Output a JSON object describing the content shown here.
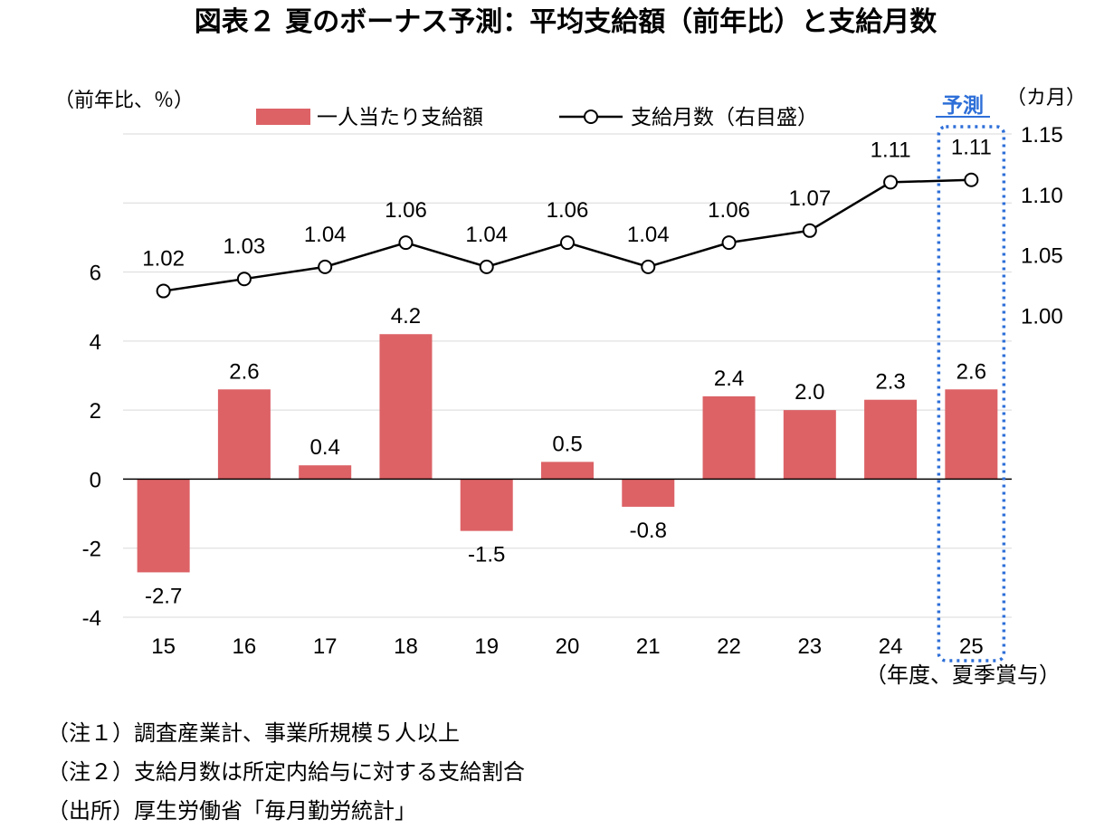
{
  "chart_data": {
    "type": "bar",
    "title": "図表２ 夏のボーナス予測：平均支給額（前年比）と支給月数",
    "y_left_label": "（前年比、％）",
    "y_right_label": "（カ月）",
    "x_label": "（年度、夏季賞与）",
    "categories": [
      "15",
      "16",
      "17",
      "18",
      "19",
      "20",
      "21",
      "22",
      "23",
      "24",
      "25"
    ],
    "y_left_ticks": [
      "-4",
      "-2",
      "0",
      "2",
      "4",
      "6"
    ],
    "y_right_ticks": [
      "1.00",
      "1.05",
      "1.10",
      "1.15"
    ],
    "ylim_left": [
      -4,
      10
    ],
    "ylim_right": [
      0.75,
      1.15
    ],
    "legend_placement": "top",
    "forecast_label": "予測",
    "forecast_category": "25",
    "series": [
      {
        "name": "一人当たり支給額",
        "type": "bar",
        "axis": "left",
        "color": "#dc6266",
        "values": [
          -2.7,
          2.6,
          0.4,
          4.2,
          -1.5,
          0.5,
          -0.8,
          2.4,
          2.0,
          2.3,
          2.6
        ],
        "labels": [
          "-2.7",
          "2.6",
          "0.4",
          "4.2",
          "-1.5",
          "0.5",
          "-0.8",
          "2.4",
          "2.0",
          "2.3",
          "2.6"
        ]
      },
      {
        "name": "支給月数（右目盛）",
        "type": "line",
        "axis": "right",
        "color": "#000000",
        "values": [
          1.02,
          1.03,
          1.04,
          1.06,
          1.04,
          1.06,
          1.04,
          1.06,
          1.07,
          1.11,
          1.112
        ],
        "labels": [
          "1.02",
          "1.03",
          "1.04",
          "1.06",
          "1.04",
          "1.06",
          "1.04",
          "1.06",
          "1.07",
          "1.11",
          "1.11"
        ]
      }
    ]
  },
  "notes": [
    "（注１）調査産業計、事業所規模５人以上",
    "（注２）支給月数は所定内給与に対する支給割合",
    "（出所）厚生労働省「毎月勤労統計」"
  ]
}
